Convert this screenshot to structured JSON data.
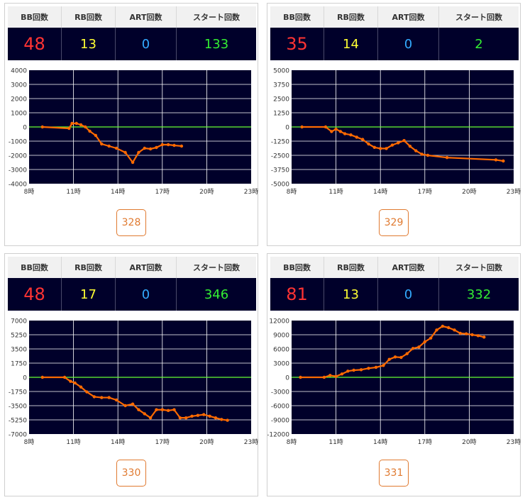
{
  "headers": {
    "bb": "BB回数",
    "rb": "RB回数",
    "art": "ART回数",
    "start": "スタート回数"
  },
  "colors": {
    "bb": "#ff3333",
    "rb": "#ffff33",
    "art": "#33aaff",
    "start": "#33ee33",
    "line": "#ff6a00",
    "zero": "#66ff33",
    "plot_bg": "#00002a",
    "accent": "#e07a30"
  },
  "x_ticks": [
    "8時",
    "11時",
    "14時",
    "17時",
    "20時",
    "23時"
  ],
  "machines": [
    {
      "number": "328",
      "bb": "48",
      "rb": "13",
      "art": "0",
      "start": "133",
      "chart_data": {
        "type": "line",
        "xlim": [
          8,
          23
        ],
        "ylim": [
          -4000,
          4000
        ],
        "y_ticks": [
          "4000",
          "3000",
          "2000",
          "1000",
          "0",
          "-1000",
          "-2000",
          "-3000",
          "-4000"
        ],
        "x_ticks": [
          "8時",
          "11時",
          "14時",
          "17時",
          "20時",
          "23時"
        ],
        "x": [
          8.9,
          10.7,
          10.9,
          11.2,
          11.5,
          11.8,
          12.1,
          12.5,
          12.9,
          13.4,
          13.9,
          14.5,
          15.0,
          15.4,
          15.8,
          16.2,
          16.6,
          17.0,
          17.4,
          17.8,
          18.3
        ],
        "y": [
          0,
          -100,
          250,
          250,
          150,
          0,
          -300,
          -600,
          -1200,
          -1350,
          -1500,
          -1800,
          -2500,
          -1800,
          -1500,
          -1550,
          -1450,
          -1250,
          -1250,
          -1300,
          -1350
        ]
      }
    },
    {
      "number": "329",
      "bb": "35",
      "rb": "14",
      "art": "0",
      "start": "2",
      "chart_data": {
        "type": "line",
        "xlim": [
          8,
          23
        ],
        "ylim": [
          -5000,
          5000
        ],
        "y_ticks": [
          "5000",
          "3750",
          "2500",
          "1250",
          "0",
          "-1250",
          "-2500",
          "-3750",
          "-5000"
        ],
        "x_ticks": [
          "8時",
          "11時",
          "14時",
          "17時",
          "20時",
          "23時"
        ],
        "x": [
          8.7,
          10.3,
          10.7,
          11.0,
          11.3,
          11.6,
          12.0,
          12.4,
          12.8,
          13.2,
          13.6,
          14.0,
          14.4,
          14.8,
          15.2,
          15.6,
          16.0,
          16.4,
          16.8,
          17.2,
          18.5,
          21.8,
          22.3
        ],
        "y": [
          0,
          0,
          -400,
          -200,
          -400,
          -600,
          -700,
          -900,
          -1100,
          -1500,
          -1800,
          -1900,
          -1900,
          -1600,
          -1400,
          -1200,
          -1700,
          -2100,
          -2400,
          -2500,
          -2700,
          -2900,
          -3000
        ]
      }
    },
    {
      "number": "330",
      "bb": "48",
      "rb": "17",
      "art": "0",
      "start": "346",
      "chart_data": {
        "type": "line",
        "xlim": [
          8,
          23
        ],
        "ylim": [
          -7000,
          7000
        ],
        "y_ticks": [
          "7000",
          "5250",
          "3500",
          "1750",
          "0",
          "-1750",
          "-3500",
          "-5250",
          "-7000"
        ],
        "x_ticks": [
          "8時",
          "11時",
          "14時",
          "17時",
          "20時",
          "23時"
        ],
        "x": [
          8.9,
          10.4,
          10.8,
          11.1,
          11.5,
          11.9,
          12.4,
          12.9,
          13.4,
          13.9,
          14.5,
          15.0,
          15.4,
          15.8,
          16.2,
          16.6,
          17.0,
          17.4,
          17.8,
          18.2,
          18.6,
          19.0,
          19.4,
          19.8,
          20.2,
          20.6,
          21.0,
          21.4
        ],
        "y": [
          0,
          0,
          -500,
          -700,
          -1200,
          -1800,
          -2400,
          -2500,
          -2500,
          -2800,
          -3500,
          -3300,
          -4000,
          -4500,
          -5000,
          -4000,
          -4000,
          -4100,
          -4000,
          -5000,
          -5000,
          -4800,
          -4700,
          -4600,
          -4800,
          -5000,
          -5200,
          -5300
        ]
      }
    },
    {
      "number": "331",
      "bb": "81",
      "rb": "13",
      "art": "0",
      "start": "332",
      "chart_data": {
        "type": "line",
        "xlim": [
          8,
          23
        ],
        "ylim": [
          -12000,
          12000
        ],
        "y_ticks": [
          "12000",
          "9000",
          "6000",
          "3000",
          "0",
          "-3000",
          "-6000",
          "-9000",
          "-12000"
        ],
        "x_ticks": [
          "8時",
          "11時",
          "14時",
          "17時",
          "20時",
          "23時"
        ],
        "x": [
          8.6,
          10.2,
          10.6,
          11.0,
          11.4,
          11.8,
          12.2,
          12.7,
          13.2,
          13.7,
          14.2,
          14.6,
          15.0,
          15.4,
          15.8,
          16.2,
          16.6,
          17.0,
          17.4,
          17.8,
          18.2,
          18.6,
          19.0,
          19.4,
          19.8,
          20.2,
          20.6,
          21.0
        ],
        "y": [
          0,
          0,
          400,
          200,
          700,
          1300,
          1500,
          1600,
          1900,
          2100,
          2500,
          3800,
          4300,
          4200,
          5000,
          6100,
          6400,
          7500,
          8300,
          10000,
          10800,
          10500,
          10000,
          9300,
          9200,
          9000,
          8800,
          8500
        ]
      }
    }
  ]
}
